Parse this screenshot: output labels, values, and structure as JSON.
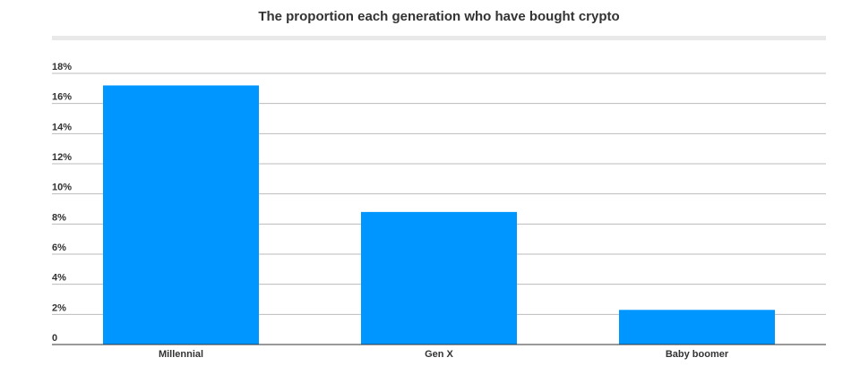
{
  "chart_data": {
    "type": "bar",
    "title": "The proportion each generation who have bought crypto",
    "categories": [
      "Millennial",
      "Gen X",
      "Baby boomer"
    ],
    "values": [
      17.2,
      8.8,
      2.3
    ],
    "unit": "%",
    "ylim": [
      0,
      18
    ],
    "yticks": [
      0,
      2,
      4,
      6,
      8,
      10,
      12,
      14,
      16,
      18
    ],
    "ytick_labels": [
      "0",
      "2%",
      "4%",
      "6%",
      "8%",
      "10%",
      "12%",
      "14%",
      "16%",
      "18%"
    ],
    "xlabel": "",
    "ylabel": "",
    "grid": true,
    "legend": "none",
    "bar_color": "#0096ff",
    "grid_color": "#bbbbbb",
    "axis_color": "#333333"
  }
}
